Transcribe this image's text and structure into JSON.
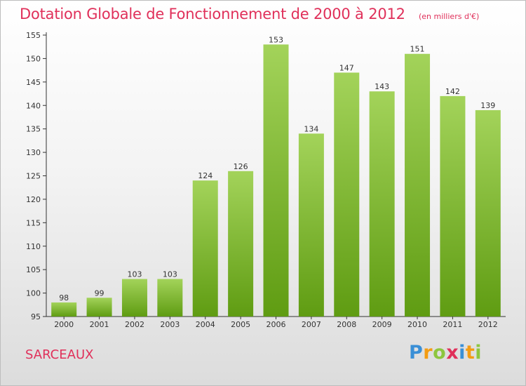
{
  "title": "Dotation Globale de Fonctionnement de 2000 à 2012",
  "subtitle": "(en milliers d'€)",
  "city": "SARCEAUX",
  "logo": {
    "letters": [
      "P",
      "r",
      "o",
      "x",
      "i",
      "t",
      "i"
    ],
    "colors": [
      "#3a8fd6",
      "#f39c12",
      "#8dc63f",
      "#e0305a",
      "#3a8fd6",
      "#f39c12",
      "#8dc63f"
    ]
  },
  "colors": {
    "title": "#e0305a",
    "bar_top": "#a3d35a",
    "bar_bottom": "#5f9c12",
    "axis": "#333333"
  },
  "chart_data": {
    "type": "bar",
    "categories": [
      "2000",
      "2001",
      "2002",
      "2003",
      "2004",
      "2005",
      "2006",
      "2007",
      "2008",
      "2009",
      "2010",
      "2011",
      "2012"
    ],
    "values": [
      98,
      99,
      103,
      103,
      124,
      126,
      153,
      134,
      147,
      143,
      151,
      142,
      139
    ],
    "ylim": [
      95,
      155
    ],
    "yticks": [
      95,
      100,
      105,
      110,
      115,
      120,
      125,
      130,
      135,
      140,
      145,
      150,
      155
    ],
    "grid": false,
    "data_labels": true
  }
}
